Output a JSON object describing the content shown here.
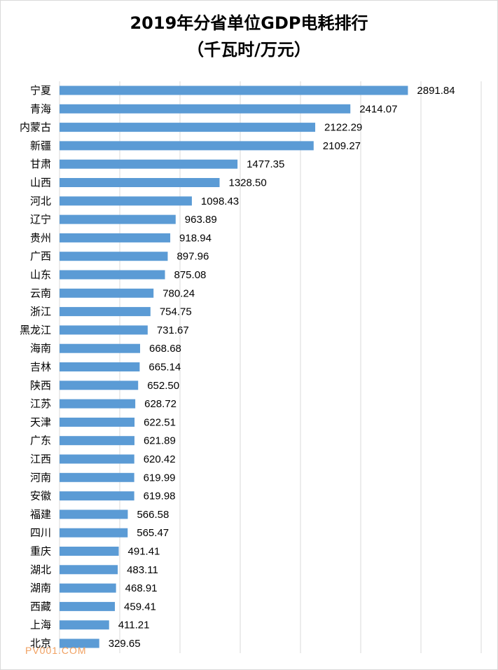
{
  "chart_data": {
    "type": "bar",
    "orientation": "horizontal",
    "title": "2019年分省单位GDP电耗排行",
    "subtitle": "（千瓦时/万元）",
    "categories": [
      "宁夏",
      "青海",
      "内蒙古",
      "新疆",
      "甘肃",
      "山西",
      "河北",
      "辽宁",
      "贵州",
      "广西",
      "山东",
      "云南",
      "浙江",
      "黑龙江",
      "海南",
      "吉林",
      "陕西",
      "江苏",
      "天津",
      "广东",
      "江西",
      "河南",
      "安徽",
      "福建",
      "四川",
      "重庆",
      "湖北",
      "湖南",
      "西藏",
      "上海",
      "北京"
    ],
    "values": [
      2891.84,
      2414.07,
      2122.29,
      2109.27,
      1477.35,
      1328.5,
      1098.43,
      963.89,
      918.94,
      897.96,
      875.08,
      780.24,
      754.75,
      731.67,
      668.68,
      665.14,
      652.5,
      628.72,
      622.51,
      621.89,
      620.42,
      619.99,
      619.98,
      566.58,
      565.47,
      491.41,
      483.11,
      468.91,
      459.41,
      411.21,
      329.65
    ],
    "value_labels": [
      "2891.84",
      "2414.07",
      "2122.29",
      "2109.27",
      "1477.35",
      "1328.50",
      "1098.43",
      "963.89",
      "918.94",
      "897.96",
      "875.08",
      "780.24",
      "754.75",
      "731.67",
      "668.68",
      "665.14",
      "652.50",
      "628.72",
      "622.51",
      "621.89",
      "620.42",
      "619.99",
      "619.98",
      "566.58",
      "565.47",
      "491.41",
      "483.11",
      "468.91",
      "459.41",
      "411.21",
      "329.65"
    ],
    "xlim": [
      0,
      3500
    ],
    "grid": true,
    "bar_color": "#5b9bd5",
    "grid_color": "#d9d9d9",
    "xlabel": "",
    "ylabel": ""
  },
  "watermark": "PV001.COM"
}
